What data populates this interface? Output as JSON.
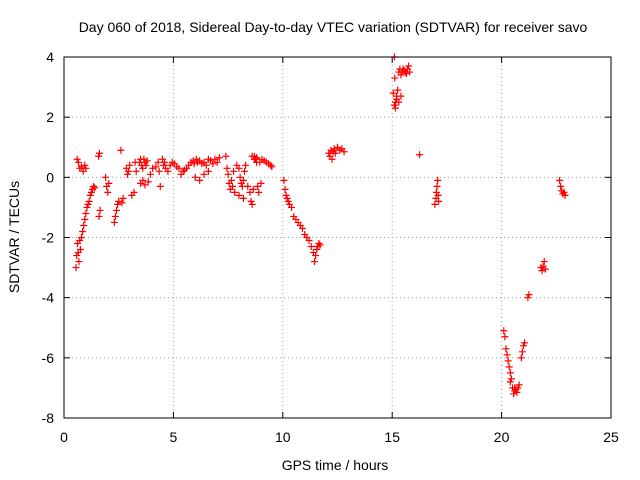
{
  "chart_data": {
    "type": "scatter",
    "title": "Day 060 of 2018, Sidereal Day-to-day VTEC variation (SDTVAR) for receiver savo",
    "xlabel": "GPS time / hours",
    "ylabel": "SDTVAR / TECUs",
    "xlim": [
      0,
      25
    ],
    "ylim": [
      -8,
      4
    ],
    "xticks": [
      0,
      5,
      10,
      15,
      20,
      25
    ],
    "yticks": [
      -8,
      -6,
      -4,
      -2,
      0,
      2,
      4
    ],
    "xtick_labels": [
      "0",
      "5",
      "10",
      "15",
      "20",
      "25"
    ],
    "ytick_labels": [
      "-8",
      "-6",
      "-4",
      "-2",
      "0",
      "2",
      "4"
    ],
    "grid": true,
    "marker": "plus",
    "color": "#ff0000",
    "series": [
      {
        "name": "SDTVAR",
        "x": [
          0.55,
          0.58,
          0.62,
          0.65,
          0.68,
          0.72,
          0.75,
          0.8,
          0.85,
          0.9,
          0.95,
          1.0,
          1.05,
          1.1,
          1.15,
          1.2,
          1.25,
          1.3,
          1.35,
          1.4,
          0.6,
          0.66,
          0.72,
          0.8,
          0.88,
          0.95,
          1.0,
          1.58,
          1.62,
          1.6,
          1.65,
          1.9,
          1.95,
          2.0,
          2.05,
          2.3,
          2.35,
          2.4,
          2.45,
          2.5,
          2.6,
          2.7,
          2.65,
          2.85,
          2.9,
          2.95,
          3.0,
          3.1,
          3.2,
          3.25,
          3.3,
          3.45,
          3.5,
          3.55,
          3.6,
          3.65,
          3.7,
          3.75,
          3.8,
          3.5,
          3.6,
          3.7,
          3.85,
          3.95,
          4.05,
          4.2,
          4.3,
          4.35,
          4.4,
          4.5,
          4.55,
          4.6,
          4.65,
          4.75,
          4.85,
          4.95,
          5.05,
          5.15,
          5.25,
          5.35,
          5.45,
          5.5,
          5.6,
          5.7,
          5.8,
          5.9,
          5.95,
          6.05,
          6.1,
          6.2,
          6.3,
          6.4,
          6.5,
          6.6,
          6.7,
          6.8,
          6.9,
          7.0,
          7.1,
          6.0,
          6.2,
          6.4,
          6.6,
          7.4,
          7.45,
          7.5,
          7.55,
          7.6,
          7.65,
          7.7,
          7.75,
          7.8,
          7.9,
          8.0,
          8.05,
          8.1,
          8.15,
          8.2,
          8.25,
          8.3,
          8.0,
          8.2,
          8.4,
          8.5,
          8.55,
          8.6,
          8.65,
          8.7,
          8.75,
          8.8,
          8.85,
          8.9,
          8.95,
          9.0,
          8.6,
          8.7,
          8.8,
          9.05,
          9.15,
          9.25,
          9.35,
          9.45,
          9.5,
          10.05,
          10.1,
          10.15,
          10.2,
          10.25,
          10.3,
          10.4,
          10.5,
          10.6,
          10.7,
          10.8,
          10.9,
          11.0,
          11.1,
          11.2,
          11.3,
          11.4,
          11.45,
          11.5,
          11.55,
          11.6,
          11.65,
          11.7,
          12.1,
          12.15,
          12.2,
          12.25,
          12.3,
          12.35,
          12.4,
          12.5,
          12.6,
          12.7,
          12.8,
          15.1,
          15.12,
          15.15,
          15.2,
          15.25,
          15.3,
          15.35,
          15.4,
          15.45,
          15.5,
          15.55,
          15.6,
          15.65,
          15.7,
          15.75,
          15.8,
          15.05,
          15.1,
          15.2,
          15.3,
          15.4,
          15.15,
          15.2,
          16.25,
          16.95,
          17.0,
          17.02,
          17.05,
          17.08,
          17.1,
          17.12,
          20.1,
          20.15,
          20.2,
          20.25,
          20.3,
          20.35,
          20.4,
          20.45,
          20.5,
          20.55,
          20.6,
          20.65,
          20.7,
          20.75,
          20.8,
          20.4,
          20.6,
          20.9,
          20.95,
          21.0,
          21.05,
          21.2,
          21.25,
          21.8,
          21.85,
          21.9,
          21.95,
          22.0,
          22.65,
          22.7,
          22.75,
          22.8,
          22.85,
          22.9
        ],
        "y": [
          -3.0,
          -2.6,
          -2.2,
          -2.5,
          -2.8,
          -2.1,
          -2.4,
          -2.0,
          -1.8,
          -1.6,
          -1.4,
          -1.2,
          -1.0,
          -0.9,
          -0.8,
          -0.6,
          -0.5,
          -0.4,
          -0.3,
          -0.35,
          0.6,
          0.5,
          0.3,
          0.35,
          0.2,
          0.4,
          0.3,
          0.7,
          0.8,
          -1.3,
          -1.1,
          0.0,
          -0.3,
          -0.5,
          -0.2,
          -1.5,
          -1.3,
          -1.1,
          -0.9,
          -0.8,
          0.9,
          -0.7,
          -0.85,
          0.3,
          0.1,
          0.2,
          0.4,
          -0.6,
          -0.5,
          0.5,
          0.2,
          0.5,
          0.6,
          0.4,
          0.3,
          0.6,
          0.5,
          0.4,
          0.55,
          -0.2,
          -0.1,
          -0.25,
          -0.15,
          0.1,
          0.3,
          0.35,
          0.5,
          0.2,
          -0.3,
          0.6,
          0.4,
          0.5,
          0.3,
          0.2,
          0.4,
          0.5,
          0.45,
          0.35,
          0.3,
          0.1,
          0.2,
          0.25,
          0.3,
          0.4,
          0.5,
          0.55,
          0.45,
          0.6,
          0.5,
          0.55,
          0.45,
          0.5,
          0.4,
          0.6,
          0.55,
          0.45,
          0.6,
          0.5,
          0.65,
          0.0,
          -0.1,
          0.1,
          0.2,
          0.7,
          0.3,
          0.1,
          -0.2,
          -0.4,
          -0.1,
          -0.3,
          0.2,
          -0.5,
          0.4,
          0.3,
          0.0,
          -0.2,
          -0.3,
          -0.1,
          0.2,
          0.4,
          -0.6,
          -0.7,
          -0.3,
          -0.5,
          -0.8,
          -0.9,
          -0.4,
          0.7,
          0.6,
          0.65,
          -0.3,
          -0.5,
          0.5,
          -0.2,
          0.7,
          0.6,
          0.5,
          0.6,
          0.55,
          0.5,
          0.45,
          0.4,
          0.35,
          -0.1,
          -0.4,
          -0.6,
          -0.7,
          -0.8,
          -0.9,
          -1.0,
          -1.3,
          -1.4,
          -1.5,
          -1.6,
          -1.7,
          -1.9,
          -2.0,
          -2.1,
          -2.3,
          -2.5,
          -2.8,
          -2.6,
          -2.4,
          -2.3,
          -2.2,
          -2.25,
          0.8,
          0.7,
          0.9,
          0.6,
          0.85,
          0.95,
          0.8,
          1.0,
          0.9,
          0.95,
          0.85,
          4.0,
          3.3,
          2.5,
          2.7,
          2.9,
          3.5,
          3.6,
          3.4,
          3.5,
          3.6,
          3.55,
          3.5,
          3.45,
          3.6,
          3.7,
          3.5,
          2.8,
          2.4,
          2.6,
          2.5,
          2.7,
          2.3,
          2.6,
          0.75,
          -0.9,
          -0.7,
          -0.5,
          -0.3,
          -0.1,
          -0.6,
          -0.8,
          -5.1,
          -5.3,
          -5.7,
          -5.9,
          -6.1,
          -6.3,
          -6.5,
          -6.7,
          -7.0,
          -7.2,
          -7.1,
          -7.05,
          -7.15,
          -7.0,
          -6.9,
          -6.8,
          -7.0,
          -6.0,
          -5.8,
          -5.6,
          -5.5,
          -4.0,
          -3.9,
          -3.0,
          -3.1,
          -2.95,
          -2.8,
          -3.05,
          -0.1,
          -0.3,
          -0.45,
          -0.55,
          -0.5,
          -0.6
        ]
      }
    ]
  }
}
